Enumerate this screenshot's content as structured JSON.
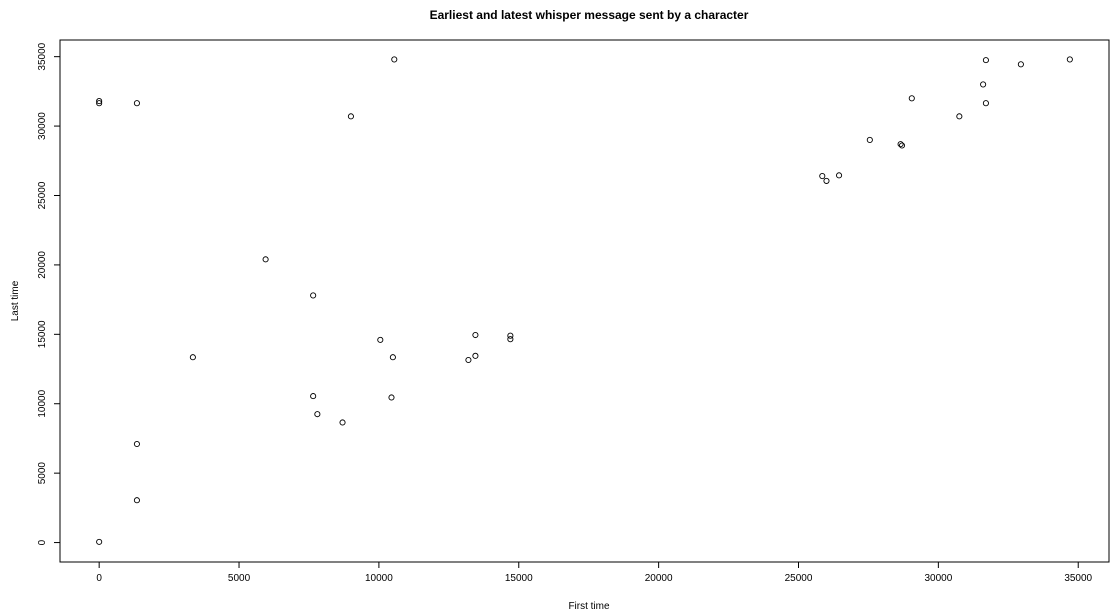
{
  "chart_data": {
    "type": "scatter",
    "title": "Earliest and latest whisper message sent by a character",
    "xlabel": "First time",
    "ylabel": "Last time",
    "xlim": [
      -1400,
      36100
    ],
    "ylim": [
      -1400,
      36200
    ],
    "xticks": [
      0,
      5000,
      10000,
      15000,
      20000,
      25000,
      30000,
      35000
    ],
    "yticks": [
      0,
      5000,
      10000,
      15000,
      20000,
      25000,
      30000,
      35000
    ],
    "xtick_labels": [
      "0",
      "5000",
      "10000",
      "15000",
      "20000",
      "25000",
      "30000",
      "35000"
    ],
    "ytick_labels": [
      "0",
      "5000",
      "10000",
      "15000",
      "20000",
      "25000",
      "30000",
      "35000"
    ],
    "grid": false,
    "legend": "none",
    "marker": "open-circle",
    "points": [
      {
        "x": 0,
        "y": 31800
      },
      {
        "x": 0,
        "y": 31650
      },
      {
        "x": 1350,
        "y": 31650
      },
      {
        "x": 0,
        "y": 50
      },
      {
        "x": 1350,
        "y": 7100
      },
      {
        "x": 1350,
        "y": 3050
      },
      {
        "x": 3350,
        "y": 13350
      },
      {
        "x": 5950,
        "y": 20400
      },
      {
        "x": 7650,
        "y": 17800
      },
      {
        "x": 7650,
        "y": 10550
      },
      {
        "x": 7800,
        "y": 9250
      },
      {
        "x": 8700,
        "y": 8650
      },
      {
        "x": 9000,
        "y": 30700
      },
      {
        "x": 10050,
        "y": 14600
      },
      {
        "x": 10500,
        "y": 13350
      },
      {
        "x": 10450,
        "y": 10450
      },
      {
        "x": 10550,
        "y": 34800
      },
      {
        "x": 13200,
        "y": 13150
      },
      {
        "x": 13450,
        "y": 13450
      },
      {
        "x": 13450,
        "y": 14950
      },
      {
        "x": 14700,
        "y": 14900
      },
      {
        "x": 14700,
        "y": 14650
      },
      {
        "x": 25850,
        "y": 26400
      },
      {
        "x": 26000,
        "y": 26050
      },
      {
        "x": 26450,
        "y": 26450
      },
      {
        "x": 27550,
        "y": 29000
      },
      {
        "x": 28650,
        "y": 28700
      },
      {
        "x": 28700,
        "y": 28600
      },
      {
        "x": 29050,
        "y": 32000
      },
      {
        "x": 30750,
        "y": 30700
      },
      {
        "x": 31600,
        "y": 33000
      },
      {
        "x": 31700,
        "y": 34750
      },
      {
        "x": 31700,
        "y": 31650
      },
      {
        "x": 32950,
        "y": 34450
      },
      {
        "x": 34700,
        "y": 34800
      }
    ]
  }
}
